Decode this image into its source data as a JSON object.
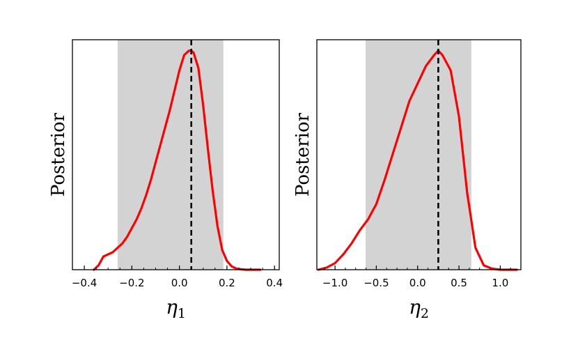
{
  "chart_data": [
    {
      "type": "line",
      "xlabel": "η",
      "xlabel_subscript": "1",
      "ylabel": "Posterior",
      "xlim": [
        -0.45,
        0.42
      ],
      "ylim": [
        0,
        1.05
      ],
      "xticks": [
        -0.4,
        -0.2,
        0.0,
        0.2,
        0.4
      ],
      "xtick_labels": [
        "−0.4",
        "−0.2",
        "0.0",
        "0.2",
        "0.4"
      ],
      "shaded_interval": [
        -0.26,
        0.185
      ],
      "reference_line": 0.05,
      "line_color": "#ff0000",
      "shade_color": "#d3d3d3",
      "x": [
        -0.36,
        -0.34,
        -0.32,
        -0.3,
        -0.28,
        -0.26,
        -0.24,
        -0.22,
        -0.2,
        -0.18,
        -0.16,
        -0.14,
        -0.12,
        -0.1,
        -0.08,
        -0.06,
        -0.04,
        -0.02,
        0.0,
        0.02,
        0.04,
        0.05,
        0.06,
        0.08,
        0.1,
        0.12,
        0.14,
        0.16,
        0.18,
        0.2,
        0.22,
        0.24,
        0.26,
        0.28,
        0.3,
        0.32,
        0.34
      ],
      "y": [
        0.0,
        0.02,
        0.06,
        0.07,
        0.08,
        0.1,
        0.12,
        0.15,
        0.19,
        0.23,
        0.28,
        0.34,
        0.41,
        0.49,
        0.57,
        0.65,
        0.73,
        0.82,
        0.91,
        0.98,
        1.0,
        1.0,
        0.99,
        0.92,
        0.75,
        0.55,
        0.36,
        0.2,
        0.09,
        0.04,
        0.015,
        0.005,
        0.002,
        0.0,
        0.0,
        0.0,
        0.0
      ]
    },
    {
      "type": "line",
      "xlabel": "η",
      "xlabel_subscript": "2",
      "ylabel": "Posterior",
      "xlim": [
        -1.22,
        1.25
      ],
      "ylim": [
        0,
        1.05
      ],
      "xticks": [
        -1.0,
        -0.5,
        0.0,
        0.5,
        1.0
      ],
      "xtick_labels": [
        "−1.0",
        "−0.5",
        "0.0",
        "0.5",
        "1.0"
      ],
      "shaded_interval": [
        -0.63,
        0.65
      ],
      "reference_line": 0.25,
      "line_color": "#ff0000",
      "shade_color": "#d3d3d3",
      "x": [
        -1.2,
        -1.1,
        -1.0,
        -0.9,
        -0.8,
        -0.7,
        -0.6,
        -0.5,
        -0.4,
        -0.3,
        -0.2,
        -0.1,
        0.0,
        0.1,
        0.2,
        0.25,
        0.3,
        0.4,
        0.5,
        0.6,
        0.7,
        0.8,
        0.9,
        1.0,
        1.1,
        1.2
      ],
      "y": [
        0.0,
        0.01,
        0.03,
        0.07,
        0.12,
        0.18,
        0.23,
        0.3,
        0.41,
        0.53,
        0.65,
        0.77,
        0.85,
        0.93,
        0.98,
        1.0,
        0.98,
        0.91,
        0.7,
        0.35,
        0.1,
        0.02,
        0.005,
        0.0,
        0.0,
        0.0
      ]
    }
  ]
}
